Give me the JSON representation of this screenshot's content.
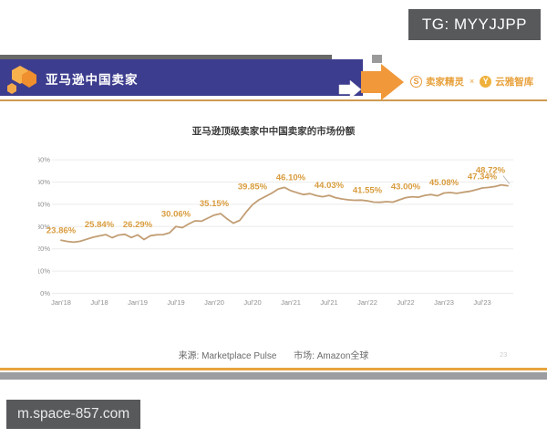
{
  "overlays": {
    "tg_badge": "TG: MYYJJPP",
    "watermark_url": "m.space-857.com"
  },
  "header": {
    "banner_title": "亚马逊中国卖家",
    "partners": {
      "brand1": "卖家精灵",
      "separator": "×",
      "brand2": "云雅智库",
      "icon1": "S",
      "icon2": "Y"
    }
  },
  "chart_data": {
    "type": "line",
    "title": "亚马逊顶级卖家中中国卖家的市场份额",
    "x": [
      "Jan'18",
      "Feb'18",
      "Mar'18",
      "Apr'18",
      "May'18",
      "Jun'18",
      "Jul'18",
      "Aug'18",
      "Sep'18",
      "Oct'18",
      "Nov'18",
      "Dec'18",
      "Jan'19",
      "Feb'19",
      "Mar'19",
      "Apr'19",
      "May'19",
      "Jun'19",
      "Jul'19",
      "Aug'19",
      "Sep'19",
      "Oct'19",
      "Nov'19",
      "Dec'19",
      "Jan'20",
      "Feb'20",
      "Mar'20",
      "Apr'20",
      "May'20",
      "Jun'20",
      "Jul'20",
      "Aug'20",
      "Sep'20",
      "Oct'20",
      "Nov'20",
      "Dec'20",
      "Jan'21",
      "Feb'21",
      "Mar'21",
      "Apr'21",
      "May'21",
      "Jun'21",
      "Jul'21",
      "Aug'21",
      "Sep'21",
      "Oct'21",
      "Nov'21",
      "Dec'21",
      "Jan'22",
      "Feb'22",
      "Mar'22",
      "Apr'22",
      "May'22",
      "Jun'22",
      "Jul'22",
      "Aug'22",
      "Sep'22",
      "Oct'22",
      "Nov'22",
      "Dec'22",
      "Jan'23",
      "Feb'23",
      "Mar'23",
      "Apr'23",
      "May'23",
      "Jun'23",
      "Jul'23",
      "Aug'23",
      "Sep'23",
      "Oct'23",
      "Nov'23"
    ],
    "values": [
      23.86,
      23.3,
      23.0,
      23.4,
      24.3,
      25.2,
      25.84,
      26.4,
      25.0,
      26.2,
      26.5,
      25.1,
      26.29,
      24.2,
      25.9,
      26.3,
      26.4,
      27.2,
      30.06,
      29.5,
      31.2,
      32.6,
      32.4,
      33.8,
      35.15,
      35.8,
      33.5,
      31.5,
      32.8,
      36.5,
      39.85,
      42.0,
      43.5,
      45.0,
      46.8,
      47.6,
      46.1,
      45.2,
      44.4,
      44.8,
      43.9,
      43.4,
      44.03,
      43.0,
      42.4,
      42.0,
      41.8,
      41.9,
      41.55,
      41.0,
      40.9,
      41.2,
      41.0,
      42.0,
      43.0,
      43.4,
      43.2,
      44.0,
      44.4,
      43.8,
      45.08,
      45.3,
      44.9,
      45.4,
      45.8,
      46.5,
      47.34,
      47.6,
      48.0,
      48.72,
      48.3
    ],
    "labeled_points": [
      {
        "index": 0,
        "label": "23.86%"
      },
      {
        "index": 6,
        "label": "25.84%"
      },
      {
        "index": 12,
        "label": "26.29%"
      },
      {
        "index": 18,
        "label": "30.06%"
      },
      {
        "index": 24,
        "label": "35.15%"
      },
      {
        "index": 30,
        "label": "39.85%"
      },
      {
        "index": 36,
        "label": "46.10%"
      },
      {
        "index": 42,
        "label": "44.03%"
      },
      {
        "index": 48,
        "label": "41.55%"
      },
      {
        "index": 54,
        "label": "43.00%"
      },
      {
        "index": 60,
        "label": "45.08%"
      },
      {
        "index": 66,
        "label": "47.34%"
      },
      {
        "index": 69,
        "label": "48.72%",
        "leader": true
      }
    ],
    "x_tick_labels": [
      "Jan'18",
      "Jul'18",
      "Jan'19",
      "Jul'19",
      "Jan'20",
      "Jul'20",
      "Jan'21",
      "Jul'21",
      "Jan'22",
      "Jul'22",
      "Jan'23",
      "Jul'23"
    ],
    "x_tick_step": 6,
    "y_ticks": [
      "0%",
      "10%",
      "20%",
      "30%",
      "40%",
      "50%",
      "60%"
    ],
    "ylim": [
      0,
      60
    ],
    "grid": true,
    "legend": "none",
    "line_color": "#c29e74",
    "label_color": "#d99c3e",
    "grid_color": "#ececec",
    "axis_text_color": "#8f8f8f"
  },
  "footer": {
    "source": "来源:  Marketplace Pulse",
    "market": "市场:  Amazon全球",
    "page_number": "23"
  }
}
